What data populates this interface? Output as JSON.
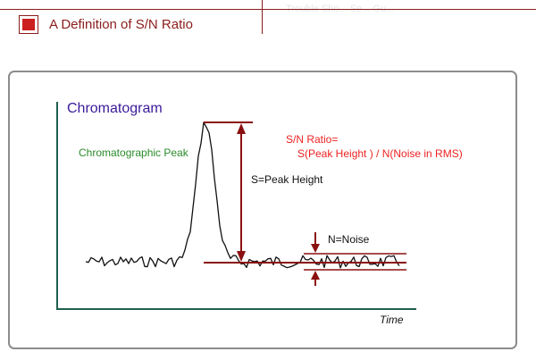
{
  "header": {
    "title": "A Definition of S/N Ratio",
    "faint_top_text": "Trouble Sho... Se... Gu..."
  },
  "diagram": {
    "axis_title": "Chromatogram",
    "peak_label": "Chromatographic Peak",
    "signal_label": "S=Peak Height",
    "noise_label": "N=Noise",
    "ratio_title": "S/N Ratio=",
    "ratio_formula": "S(Peak Height ) / N(Noise in RMS)",
    "x_axis_label": "Time"
  },
  "colors": {
    "accent_red": "#cc1f1f",
    "header_rule": "#8b1c1c",
    "frame_border": "#8c8c8c",
    "axis": "#1f5f4f",
    "axis_title": "#3a1a9a",
    "peak_label": "#2a8a2a",
    "ratio_text": "#ee2222",
    "marker_line": "#8b1010",
    "trace": "#111111"
  }
}
